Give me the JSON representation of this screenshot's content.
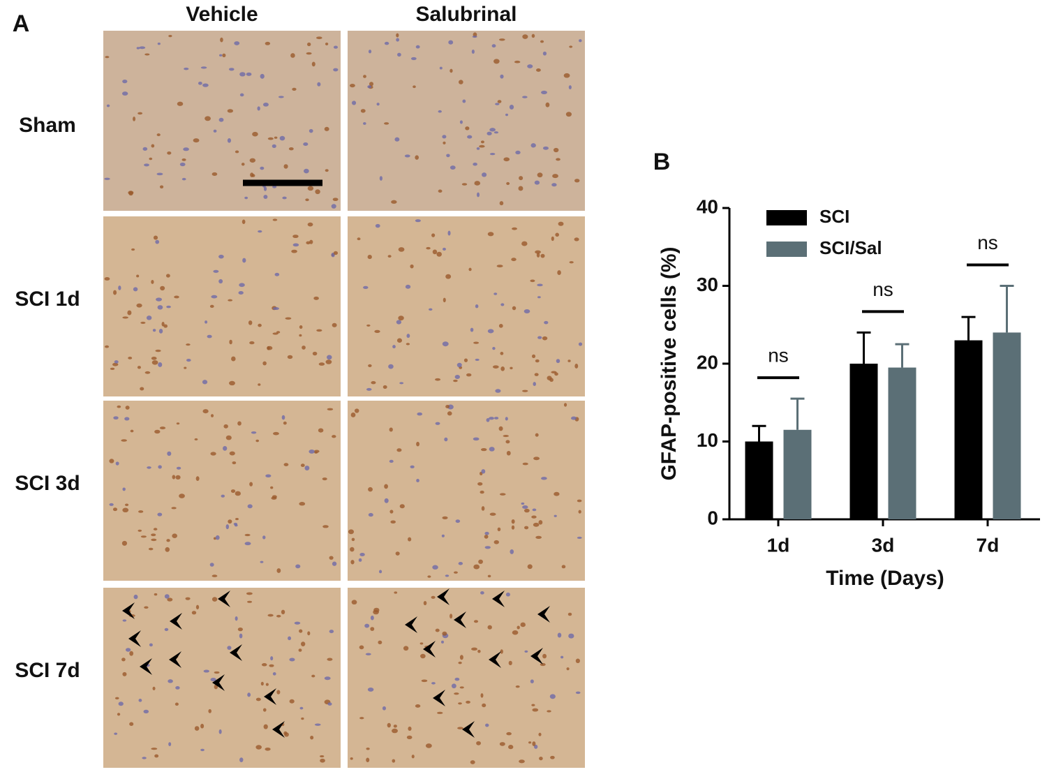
{
  "panel_a": {
    "label": "A",
    "columns": [
      "Vehicle",
      "Salubrinal"
    ],
    "rows": [
      "Sham",
      "SCI 1d",
      "SCI 3d",
      "SCI 7d"
    ]
  },
  "chart_data": {
    "type": "bar",
    "panel_label": "B",
    "categories": [
      "1d",
      "3d",
      "7d"
    ],
    "series": [
      {
        "name": "SCI",
        "color": "#000000",
        "values": [
          10,
          20,
          23
        ],
        "errors": [
          2,
          4,
          3
        ]
      },
      {
        "name": "SCI/Sal",
        "color": "#5b6f76",
        "values": [
          11.5,
          19.5,
          24
        ],
        "errors": [
          4,
          3,
          6
        ]
      }
    ],
    "annotations": [
      "ns",
      "ns",
      "ns"
    ],
    "ylabel": "GFAP-positive cells (%)",
    "xlabel": "Time (Days)",
    "ylim": [
      0,
      40
    ],
    "yticks": [
      0,
      10,
      20,
      30,
      40
    ],
    "legend": "upper left"
  }
}
